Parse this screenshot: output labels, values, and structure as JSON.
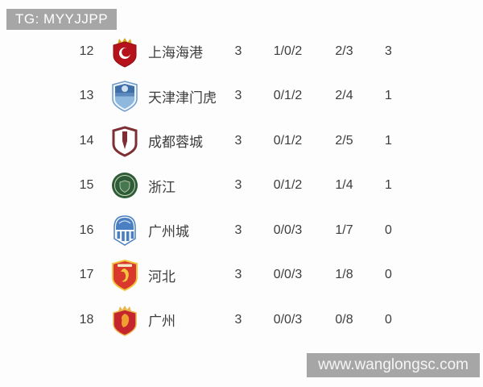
{
  "header": {
    "tag_label": "TG: MYYJJPP"
  },
  "watermark": {
    "site_label": "www.wanglongsc.com"
  },
  "colors": {
    "tag_background": "#a6a6a6",
    "tag_text": "#ffffff",
    "row_text": "#3d3d3d",
    "page_background": "#fdfdfd"
  },
  "table": {
    "rows": [
      {
        "rank": "12",
        "team": "上海海港",
        "badge": "shanghai-port-badge",
        "played": "3",
        "win_draw_loss": "1/0/2",
        "goals_for_against": "2/3",
        "points": "3"
      },
      {
        "rank": "13",
        "team": "天津津门虎",
        "badge": "tianjin-jinmenhu-badge",
        "played": "3",
        "win_draw_loss": "0/1/2",
        "goals_for_against": "2/4",
        "points": "1"
      },
      {
        "rank": "14",
        "team": "成都蓉城",
        "badge": "chengdu-rongcheng-badge",
        "played": "3",
        "win_draw_loss": "0/1/2",
        "goals_for_against": "2/5",
        "points": "1"
      },
      {
        "rank": "15",
        "team": "浙江",
        "badge": "zhejiang-badge",
        "played": "3",
        "win_draw_loss": "0/1/2",
        "goals_for_against": "1/4",
        "points": "1"
      },
      {
        "rank": "16",
        "team": "广州城",
        "badge": "guangzhou-city-badge",
        "played": "3",
        "win_draw_loss": "0/0/3",
        "goals_for_against": "1/7",
        "points": "0"
      },
      {
        "rank": "17",
        "team": "河北",
        "badge": "hebei-badge",
        "played": "3",
        "win_draw_loss": "0/0/3",
        "goals_for_against": "1/8",
        "points": "0"
      },
      {
        "rank": "18",
        "team": "广州",
        "badge": "guangzhou-badge",
        "played": "3",
        "win_draw_loss": "0/0/3",
        "goals_for_against": "0/8",
        "points": "0"
      }
    ]
  }
}
